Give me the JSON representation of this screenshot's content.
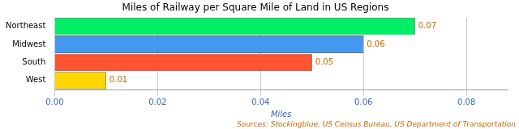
{
  "chart_data": {
    "type": "bar",
    "orientation": "horizontal",
    "title": "Miles of Railway per Square Mile of Land in US Regions",
    "categories": [
      "West",
      "South",
      "Midwest",
      "Northeast"
    ],
    "values": [
      0.01,
      0.05,
      0.06,
      0.07
    ],
    "colors": [
      "#FFD700",
      "#FF5533",
      "#4499EE",
      "#00EE66"
    ],
    "x_label": "Miles",
    "xlim": [
      0,
      0.088
    ],
    "xticks": [
      {
        "value": 0,
        "label": "0.00"
      },
      0.02,
      0.04,
      0.06,
      0.08
    ],
    "grid": true,
    "data_labels": true,
    "annotations": [
      "Sources: Stockingblue, US Census Bureau, US Department of Transportation"
    ]
  }
}
